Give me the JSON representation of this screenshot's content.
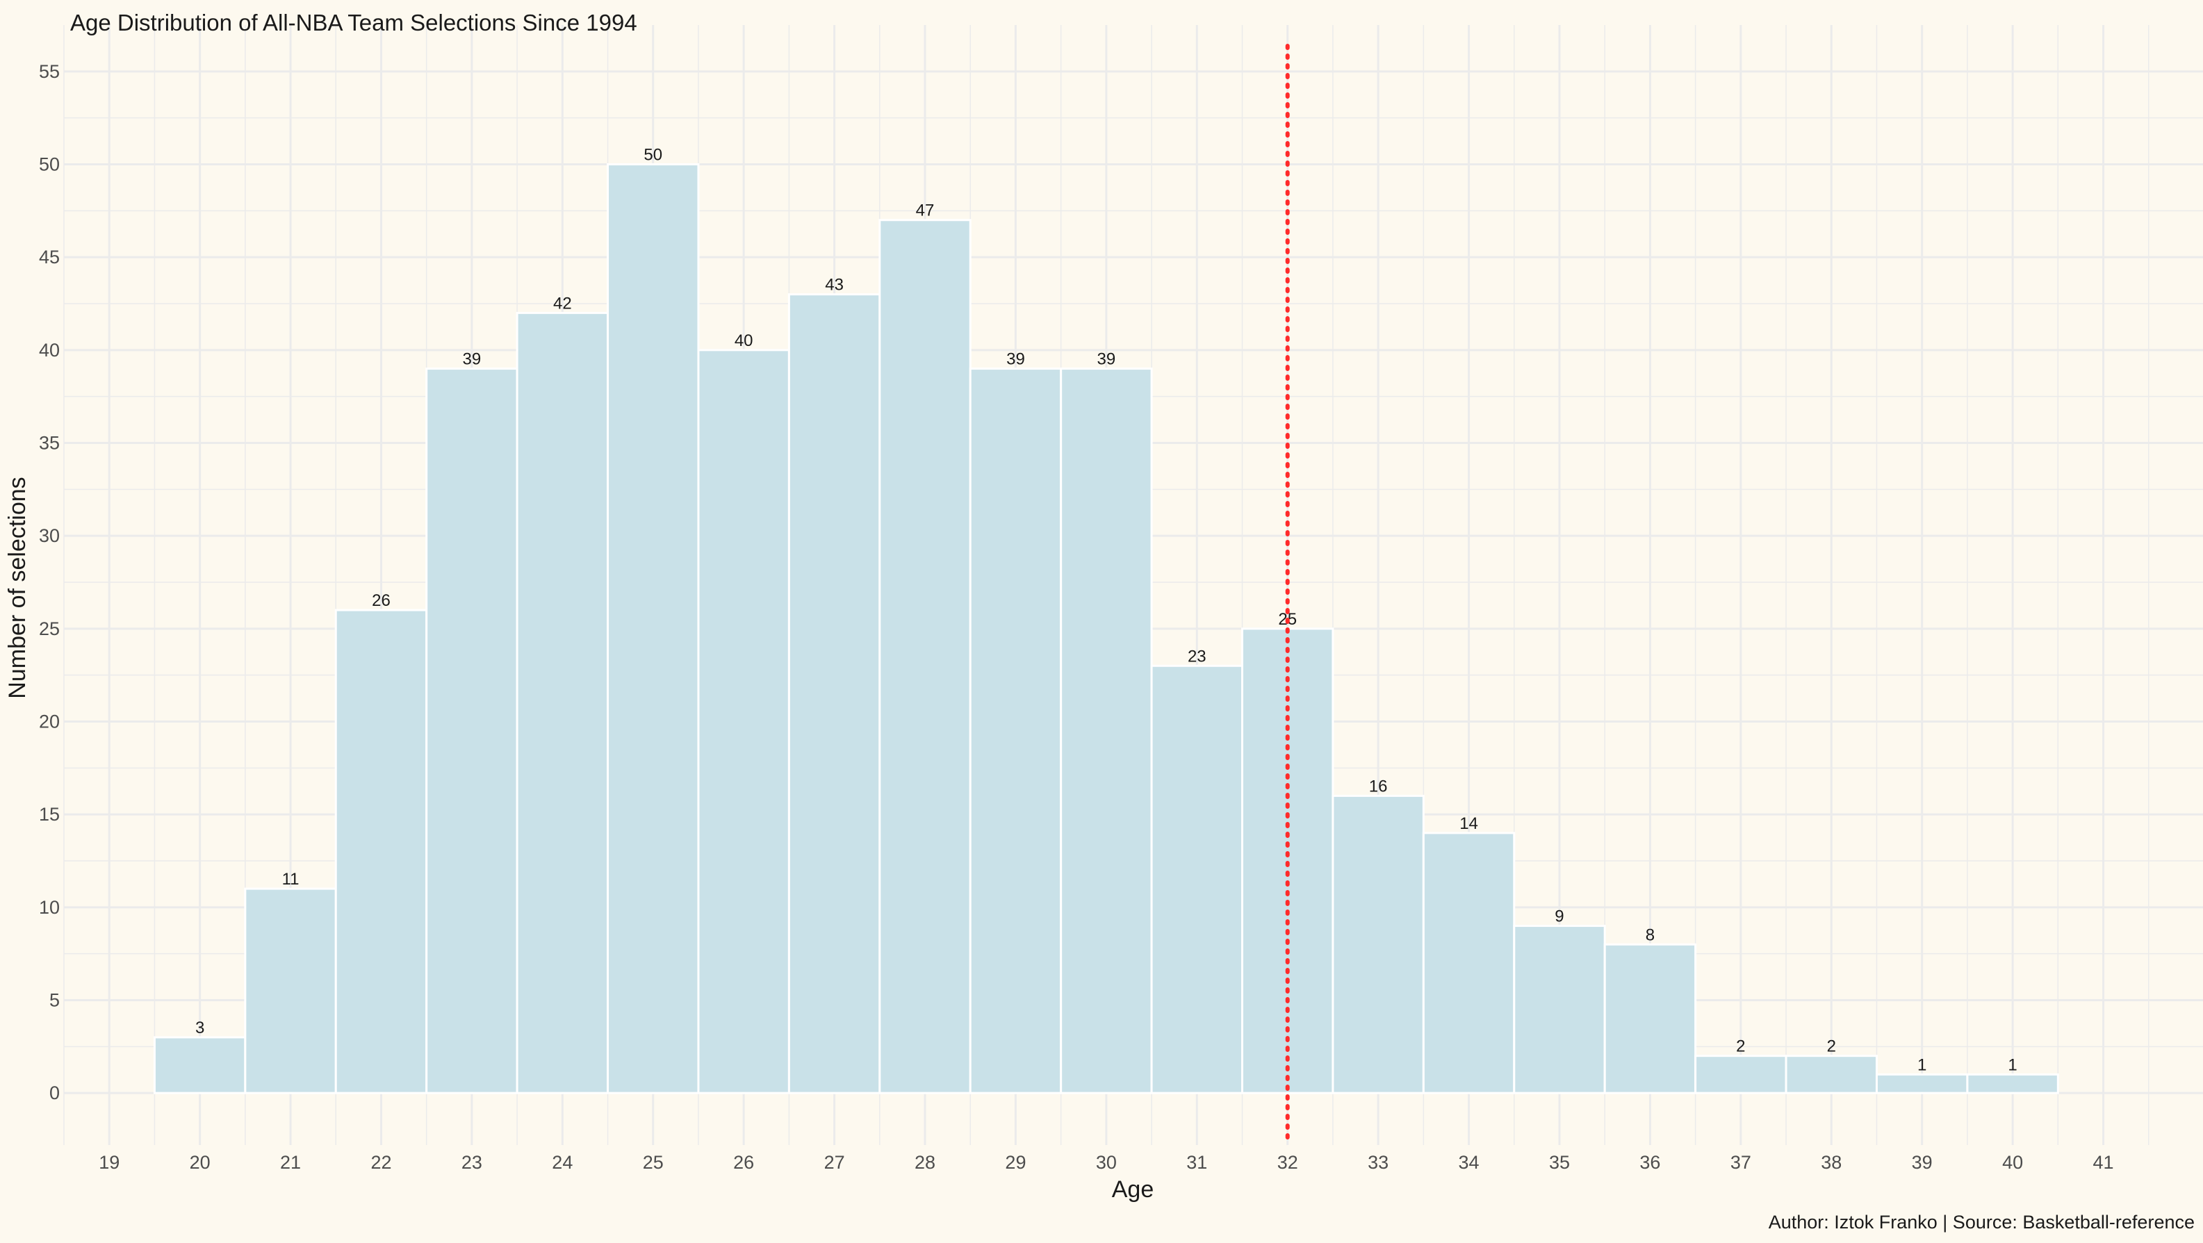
{
  "chart_data": {
    "type": "bar",
    "title": "Age Distribution of All-NBA Team Selections Since 1994",
    "xlabel": "Age",
    "ylabel": "Number of selections",
    "caption": "Author: Iztok Franko | Source: Basketball-reference",
    "x_ticks": [
      19,
      20,
      21,
      22,
      23,
      24,
      25,
      26,
      27,
      28,
      29,
      30,
      31,
      32,
      33,
      34,
      35,
      36,
      37,
      38,
      39,
      40,
      41
    ],
    "y_ticks": [
      0,
      5,
      10,
      15,
      20,
      25,
      30,
      35,
      40,
      45,
      50,
      55
    ],
    "xlim": [
      18.5,
      42.1
    ],
    "ylim": [
      -2.8,
      57.5
    ],
    "categories": [
      20,
      21,
      22,
      23,
      24,
      25,
      26,
      27,
      28,
      29,
      30,
      31,
      32,
      33,
      34,
      35,
      36,
      37,
      38,
      39,
      40
    ],
    "values": [
      3,
      11,
      26,
      39,
      42,
      50,
      40,
      43,
      47,
      39,
      39,
      23,
      25,
      16,
      14,
      9,
      8,
      2,
      2,
      1,
      1
    ],
    "reference_line": {
      "x": 32,
      "style": "dotted",
      "color": "#ff2a2a"
    },
    "grid": true,
    "colors": {
      "background": "#fdf9ef",
      "bar_fill": "#c9e1e8",
      "bar_stroke": "#ffffff",
      "grid": "#ebebeb",
      "text": "#1a1a1a",
      "tick_text": "#4d4d4d"
    }
  }
}
